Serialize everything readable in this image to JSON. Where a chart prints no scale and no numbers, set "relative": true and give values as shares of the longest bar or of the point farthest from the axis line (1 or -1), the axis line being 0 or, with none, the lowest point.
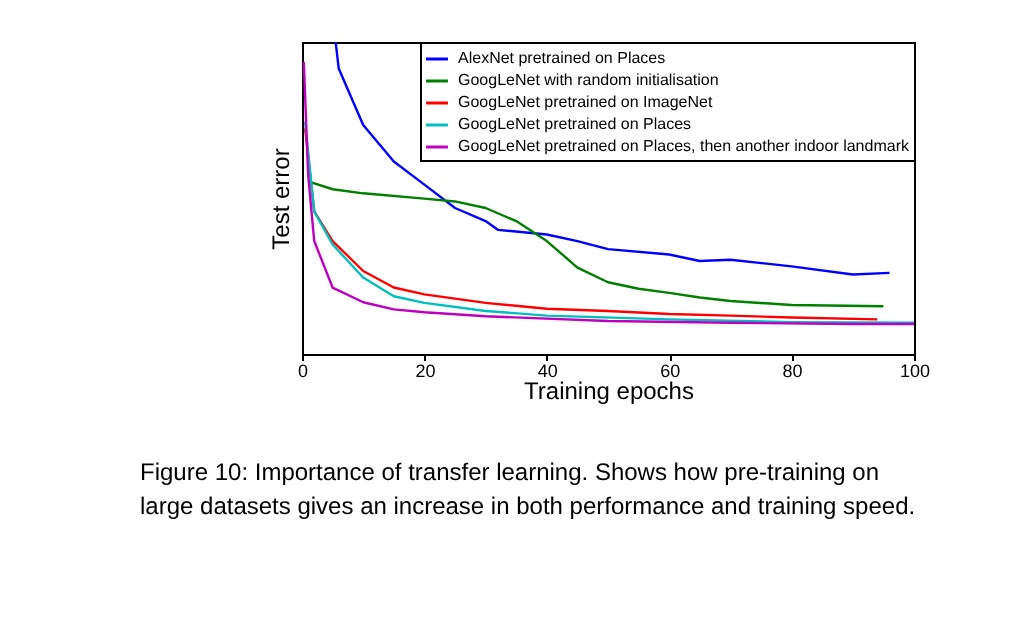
{
  "chart_data": {
    "type": "line",
    "relative": true,
    "xlabel": "Training epochs",
    "ylabel": "Test error",
    "xlim": [
      0,
      100
    ],
    "xticks": [
      0,
      20,
      40,
      60,
      80,
      100
    ],
    "grid": false,
    "legend": "top right",
    "marker": "none",
    "line_style": "solid",
    "series": [
      {
        "name": "AlexNet pretrained on Places",
        "color": "#0000ff",
        "x": [
          5.5,
          6,
          10,
          15,
          20,
          25,
          30,
          32,
          40,
          45,
          50,
          60,
          65,
          70,
          80,
          90,
          96
        ],
        "values": [
          1.0,
          0.915,
          0.734,
          0.617,
          0.543,
          0.468,
          0.426,
          0.398,
          0.383,
          0.362,
          0.336,
          0.319,
          0.298,
          0.302,
          0.281,
          0.255,
          0.26
        ]
      },
      {
        "name": "GoogLeNet with random initialisation",
        "color": "#008000",
        "x": [
          1,
          5,
          10,
          20,
          25,
          30,
          35,
          40,
          45,
          50,
          55,
          60,
          65,
          70,
          80,
          95
        ],
        "values": [
          0.553,
          0.528,
          0.515,
          0.498,
          0.489,
          0.468,
          0.426,
          0.362,
          0.277,
          0.23,
          0.209,
          0.196,
          0.181,
          0.17,
          0.157,
          0.153
        ]
      },
      {
        "name": "GoogLeNet pretrained on ImageNet",
        "color": "#ff0000",
        "x": [
          0.5,
          2,
          5,
          10,
          15,
          20,
          30,
          40,
          50,
          60,
          70,
          80,
          94
        ],
        "values": [
          0.723,
          0.457,
          0.362,
          0.266,
          0.213,
          0.191,
          0.164,
          0.145,
          0.138,
          0.128,
          0.123,
          0.117,
          0.111
        ]
      },
      {
        "name": "GoogLeNet pretrained on Places",
        "color": "#00bfbf",
        "x": [
          0.5,
          2,
          5,
          10,
          15,
          20,
          30,
          40,
          60,
          80,
          100
        ],
        "values": [
          0.745,
          0.457,
          0.351,
          0.245,
          0.185,
          0.164,
          0.138,
          0.123,
          0.111,
          0.102,
          0.1
        ]
      },
      {
        "name": "GoogLeNet pretrained on Places, then another indoor landmark",
        "color": "#bf00bf",
        "x": [
          0.3,
          1,
          2,
          5,
          10,
          15,
          20,
          30,
          50,
          70,
          90,
          100
        ],
        "values": [
          0.936,
          0.574,
          0.362,
          0.213,
          0.166,
          0.143,
          0.134,
          0.121,
          0.106,
          0.1,
          0.096,
          0.096
        ]
      }
    ],
    "annotations": [
      "Figure 10: Importance of transfer learning. Shows how pre-training on large datasets gives an increase in both performance and training speed."
    ]
  }
}
